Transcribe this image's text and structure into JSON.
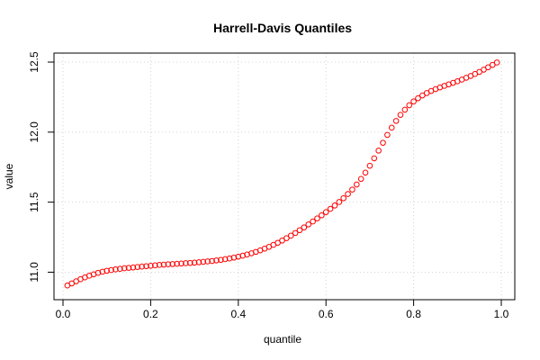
{
  "chart_data": {
    "type": "scatter",
    "title": "Harrell-Davis Quantiles",
    "xlabel": "quantile",
    "ylabel": "value",
    "xlim": [
      0,
      1
    ],
    "ylim": [
      10.9,
      12.5
    ],
    "x_ticks": [
      0.0,
      0.2,
      0.4,
      0.6,
      0.8,
      1.0
    ],
    "x_tick_labels": [
      "0.0",
      "0.2",
      "0.4",
      "0.6",
      "0.8",
      "1.0"
    ],
    "y_ticks": [
      11.0,
      11.5,
      12.0,
      12.5
    ],
    "y_tick_labels": [
      "11.0",
      "11.5",
      "12.0",
      "12.5"
    ],
    "grid": true,
    "point_color": "#ff0000",
    "series": [
      {
        "marker": "open-circle",
        "x": [
          0.01,
          0.02,
          0.03,
          0.04,
          0.05,
          0.06,
          0.07,
          0.08,
          0.09,
          0.1,
          0.11,
          0.12,
          0.13,
          0.14,
          0.15,
          0.16,
          0.17,
          0.18,
          0.19,
          0.2,
          0.21,
          0.22,
          0.23,
          0.24,
          0.25,
          0.26,
          0.27,
          0.28,
          0.29,
          0.3,
          0.31,
          0.32,
          0.33,
          0.34,
          0.35,
          0.36,
          0.37,
          0.38,
          0.39,
          0.4,
          0.41,
          0.42,
          0.43,
          0.44,
          0.45,
          0.46,
          0.47,
          0.48,
          0.49,
          0.5,
          0.51,
          0.52,
          0.53,
          0.54,
          0.55,
          0.56,
          0.57,
          0.58,
          0.59,
          0.6,
          0.61,
          0.62,
          0.63,
          0.64,
          0.65,
          0.66,
          0.67,
          0.68,
          0.69,
          0.7,
          0.71,
          0.72,
          0.73,
          0.74,
          0.75,
          0.76,
          0.77,
          0.78,
          0.79,
          0.8,
          0.81,
          0.82,
          0.83,
          0.84,
          0.85,
          0.86,
          0.87,
          0.88,
          0.89,
          0.9,
          0.91,
          0.92,
          0.93,
          0.94,
          0.95,
          0.96,
          0.97,
          0.98,
          0.99
        ],
        "y": [
          10.905,
          10.92,
          10.935,
          10.95,
          10.963,
          10.975,
          10.985,
          10.995,
          11.003,
          11.01,
          11.015,
          11.02,
          11.024,
          11.028,
          11.031,
          11.034,
          11.037,
          11.04,
          11.043,
          11.046,
          11.049,
          11.052,
          11.054,
          11.056,
          11.058,
          11.06,
          11.062,
          11.064,
          11.066,
          11.068,
          11.071,
          11.074,
          11.077,
          11.08,
          11.084,
          11.088,
          11.093,
          11.098,
          11.104,
          11.111,
          11.118,
          11.126,
          11.135,
          11.145,
          11.156,
          11.168,
          11.181,
          11.195,
          11.21,
          11.226,
          11.243,
          11.261,
          11.28,
          11.3,
          11.32,
          11.341,
          11.362,
          11.384,
          11.406,
          11.429,
          11.452,
          11.476,
          11.501,
          11.528,
          11.558,
          11.59,
          11.626,
          11.666,
          11.711,
          11.76,
          11.813,
          11.868,
          11.924,
          11.98,
          12.032,
          12.08,
          12.123,
          12.16,
          12.192,
          12.219,
          12.242,
          12.262,
          12.279,
          12.294,
          12.307,
          12.319,
          12.33,
          12.341,
          12.352,
          12.363,
          12.375,
          12.388,
          12.401,
          12.415,
          12.43,
          12.446,
          12.463,
          12.48,
          12.497
        ]
      }
    ]
  }
}
